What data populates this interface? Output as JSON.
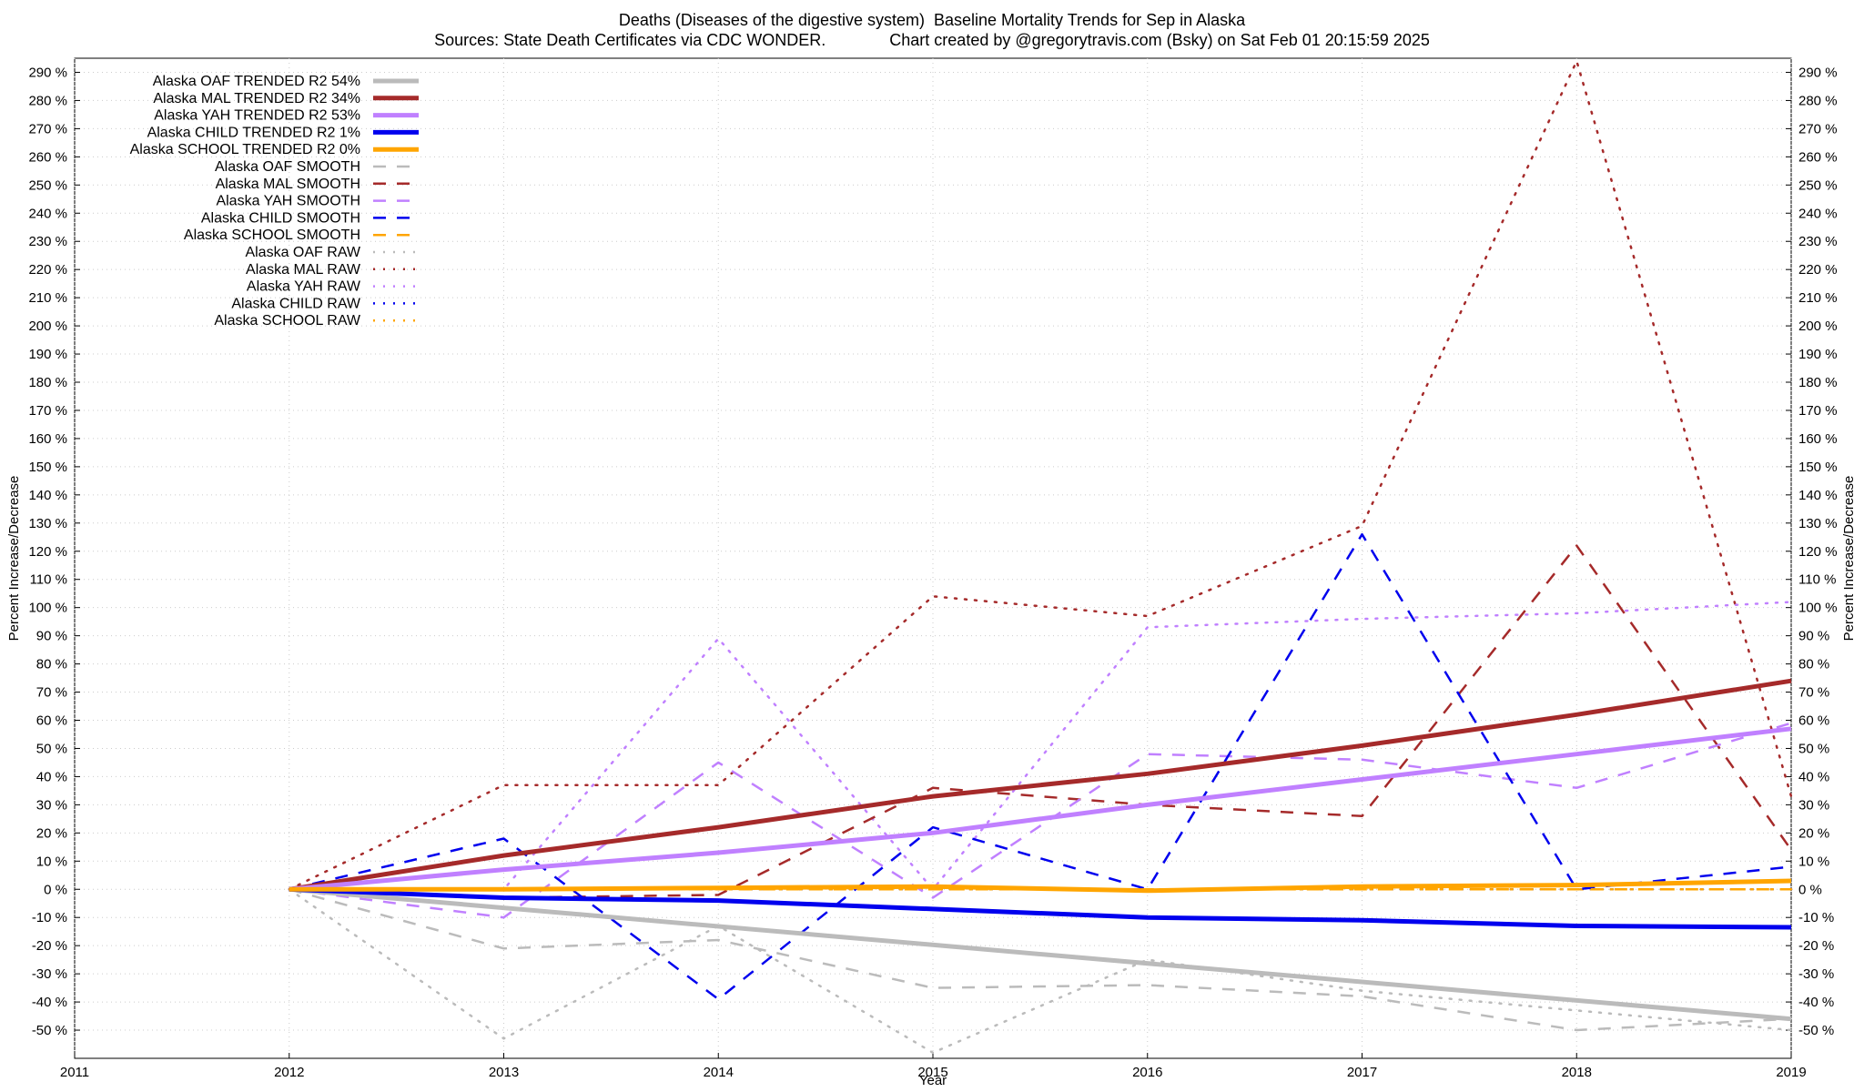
{
  "chart_data": {
    "type": "line",
    "title": "Deaths (Diseases of the digestive system)  Baseline Mortality Trends for Sep in Alaska",
    "subtitle": "Sources: State Death Certificates via CDC WONDER.              Chart created by @gregorytravis.com (Bsky) on Sat Feb 01 20:15:59 2025",
    "xlabel": "Year",
    "ylabel": "Percent Increase/Decrease",
    "y2label": "Percent Increase/Decrease",
    "xlim": [
      2011,
      2019
    ],
    "ylim": [
      -60,
      295
    ],
    "x_ticks": [
      "2011",
      "2012",
      "2013",
      "2014",
      "2015",
      "2016",
      "2017",
      "2018",
      "2019"
    ],
    "y_ticks": [
      {
        "value": -50,
        "label": "-50 %"
      },
      {
        "value": -40,
        "label": "-40 %"
      },
      {
        "value": -30,
        "label": "-30 %"
      },
      {
        "value": -20,
        "label": "-20 %"
      },
      {
        "value": -10,
        "label": "-10 %"
      },
      {
        "value": 0,
        "label": "0 %"
      },
      {
        "value": 10,
        "label": "10 %"
      },
      {
        "value": 20,
        "label": "20 %"
      },
      {
        "value": 30,
        "label": "30 %"
      },
      {
        "value": 40,
        "label": "40 %"
      },
      {
        "value": 50,
        "label": "50 %"
      },
      {
        "value": 60,
        "label": "60 %"
      },
      {
        "value": 70,
        "label": "70 %"
      },
      {
        "value": 80,
        "label": "80 %"
      },
      {
        "value": 90,
        "label": "90 %"
      },
      {
        "value": 100,
        "label": "100 %"
      },
      {
        "value": 110,
        "label": "110 %"
      },
      {
        "value": 120,
        "label": "120 %"
      },
      {
        "value": 130,
        "label": "130 %"
      },
      {
        "value": 140,
        "label": "140 %"
      },
      {
        "value": 150,
        "label": "150 %"
      },
      {
        "value": 160,
        "label": "160 %"
      },
      {
        "value": 170,
        "label": "170 %"
      },
      {
        "value": 180,
        "label": "180 %"
      },
      {
        "value": 190,
        "label": "190 %"
      },
      {
        "value": 200,
        "label": "200 %"
      },
      {
        "value": 210,
        "label": "210 %"
      },
      {
        "value": 220,
        "label": "220 %"
      },
      {
        "value": 230,
        "label": "230 %"
      },
      {
        "value": 240,
        "label": "240 %"
      },
      {
        "value": 250,
        "label": "250 %"
      },
      {
        "value": 260,
        "label": "260 %"
      },
      {
        "value": 270,
        "label": "270 %"
      },
      {
        "value": 280,
        "label": "280 %"
      },
      {
        "value": 290,
        "label": "290 %"
      }
    ],
    "grid": true,
    "legend_position": "top-left",
    "series": [
      {
        "name": "Alaska OAF TRENDED R2  54%",
        "style": "solid",
        "color": "#bbbbbb",
        "x": [
          2012,
          2019
        ],
        "y": [
          0,
          -46
        ]
      },
      {
        "name": "Alaska MAL TRENDED R2  34%",
        "style": "solid",
        "color": "#a52a2a",
        "x": [
          2012,
          2013,
          2014,
          2015,
          2016,
          2017,
          2018,
          2019
        ],
        "y": [
          0,
          12,
          22,
          33,
          41,
          51,
          62,
          74
        ]
      },
      {
        "name": "Alaska YAH TRENDED R2  53%",
        "style": "solid",
        "color": "#c080ff",
        "x": [
          2012,
          2013,
          2014,
          2015,
          2016,
          2017,
          2018,
          2019
        ],
        "y": [
          0,
          7,
          13,
          20,
          30,
          39,
          48,
          57
        ]
      },
      {
        "name": "Alaska CHILD TRENDED R2   1%",
        "style": "solid",
        "color": "#0000ee",
        "x": [
          2012,
          2013,
          2014,
          2015,
          2016,
          2017,
          2018,
          2019
        ],
        "y": [
          0,
          -3,
          -4,
          -7,
          -10,
          -11,
          -13,
          -13.5
        ]
      },
      {
        "name": "Alaska SCHOOL TRENDED R2   0%",
        "style": "solid",
        "color": "#ffa500",
        "x": [
          2012,
          2013,
          2014,
          2015,
          2016,
          2017,
          2018,
          2019
        ],
        "y": [
          0,
          0,
          0.5,
          1,
          -0.5,
          1,
          1.5,
          3
        ]
      },
      {
        "name": "Alaska OAF SMOOTH",
        "style": "dashed",
        "color": "#bbbbbb",
        "x": [
          2012,
          2013,
          2014,
          2015,
          2016,
          2017,
          2018,
          2019
        ],
        "y": [
          0,
          -21,
          -18,
          -35,
          -34,
          -38,
          -50,
          -46
        ]
      },
      {
        "name": "Alaska MAL SMOOTH",
        "style": "dashed",
        "color": "#a52a2a",
        "x": [
          2012,
          2013,
          2014,
          2015,
          2016,
          2017,
          2018,
          2019
        ],
        "y": [
          0,
          -3,
          -2,
          36,
          30,
          26,
          122,
          14
        ]
      },
      {
        "name": "Alaska YAH SMOOTH",
        "style": "dashed",
        "color": "#c080ff",
        "x": [
          2012,
          2013,
          2014,
          2015,
          2016,
          2017,
          2018,
          2019
        ],
        "y": [
          0,
          -10,
          45,
          -3,
          48,
          46,
          36,
          59
        ]
      },
      {
        "name": "Alaska CHILD SMOOTH",
        "style": "dashed",
        "color": "#0000ee",
        "x": [
          2012,
          2013,
          2014,
          2015,
          2016,
          2017,
          2018,
          2019
        ],
        "y": [
          0,
          18,
          -39,
          22,
          0,
          126,
          0,
          8
        ]
      },
      {
        "name": "Alaska SCHOOL SMOOTH",
        "style": "dashed",
        "color": "#ffa500",
        "x": [
          2012,
          2013,
          2014,
          2015,
          2016,
          2017,
          2018,
          2019
        ],
        "y": [
          0,
          0,
          0,
          0,
          0,
          0,
          0,
          0
        ]
      },
      {
        "name": "Alaska OAF RAW",
        "style": "dotted",
        "color": "#bbbbbb",
        "x": [
          2012,
          2013,
          2014,
          2015,
          2016,
          2017,
          2018,
          2019
        ],
        "y": [
          0,
          -53,
          -13,
          -58,
          -25,
          -36,
          -43,
          -50
        ]
      },
      {
        "name": "Alaska MAL RAW",
        "style": "dotted",
        "color": "#a52a2a",
        "x": [
          2012,
          2013,
          2014,
          2015,
          2016,
          2017,
          2018,
          2019
        ],
        "y": [
          0,
          37,
          37,
          104,
          97,
          129,
          294,
          33
        ]
      },
      {
        "name": "Alaska YAH RAW",
        "style": "dotted",
        "color": "#c080ff",
        "x": [
          2012,
          2013,
          2014,
          2015,
          2016,
          2017,
          2018,
          2019
        ],
        "y": [
          0,
          0,
          89,
          0,
          93,
          96,
          98,
          102
        ]
      },
      {
        "name": "Alaska CHILD RAW",
        "style": "dotted",
        "color": "#0000ee",
        "x": [
          2012,
          2013,
          2014,
          2015,
          2016,
          2017,
          2018,
          2019
        ],
        "y": [
          0,
          0,
          0,
          0,
          0,
          0,
          0,
          0
        ]
      },
      {
        "name": "Alaska SCHOOL RAW",
        "style": "dotted",
        "color": "#ffa500",
        "x": [
          2012,
          2013,
          2014,
          2015,
          2016,
          2017,
          2018,
          2019
        ],
        "y": [
          0,
          0,
          0,
          0,
          0,
          0,
          0,
          0
        ]
      }
    ]
  }
}
